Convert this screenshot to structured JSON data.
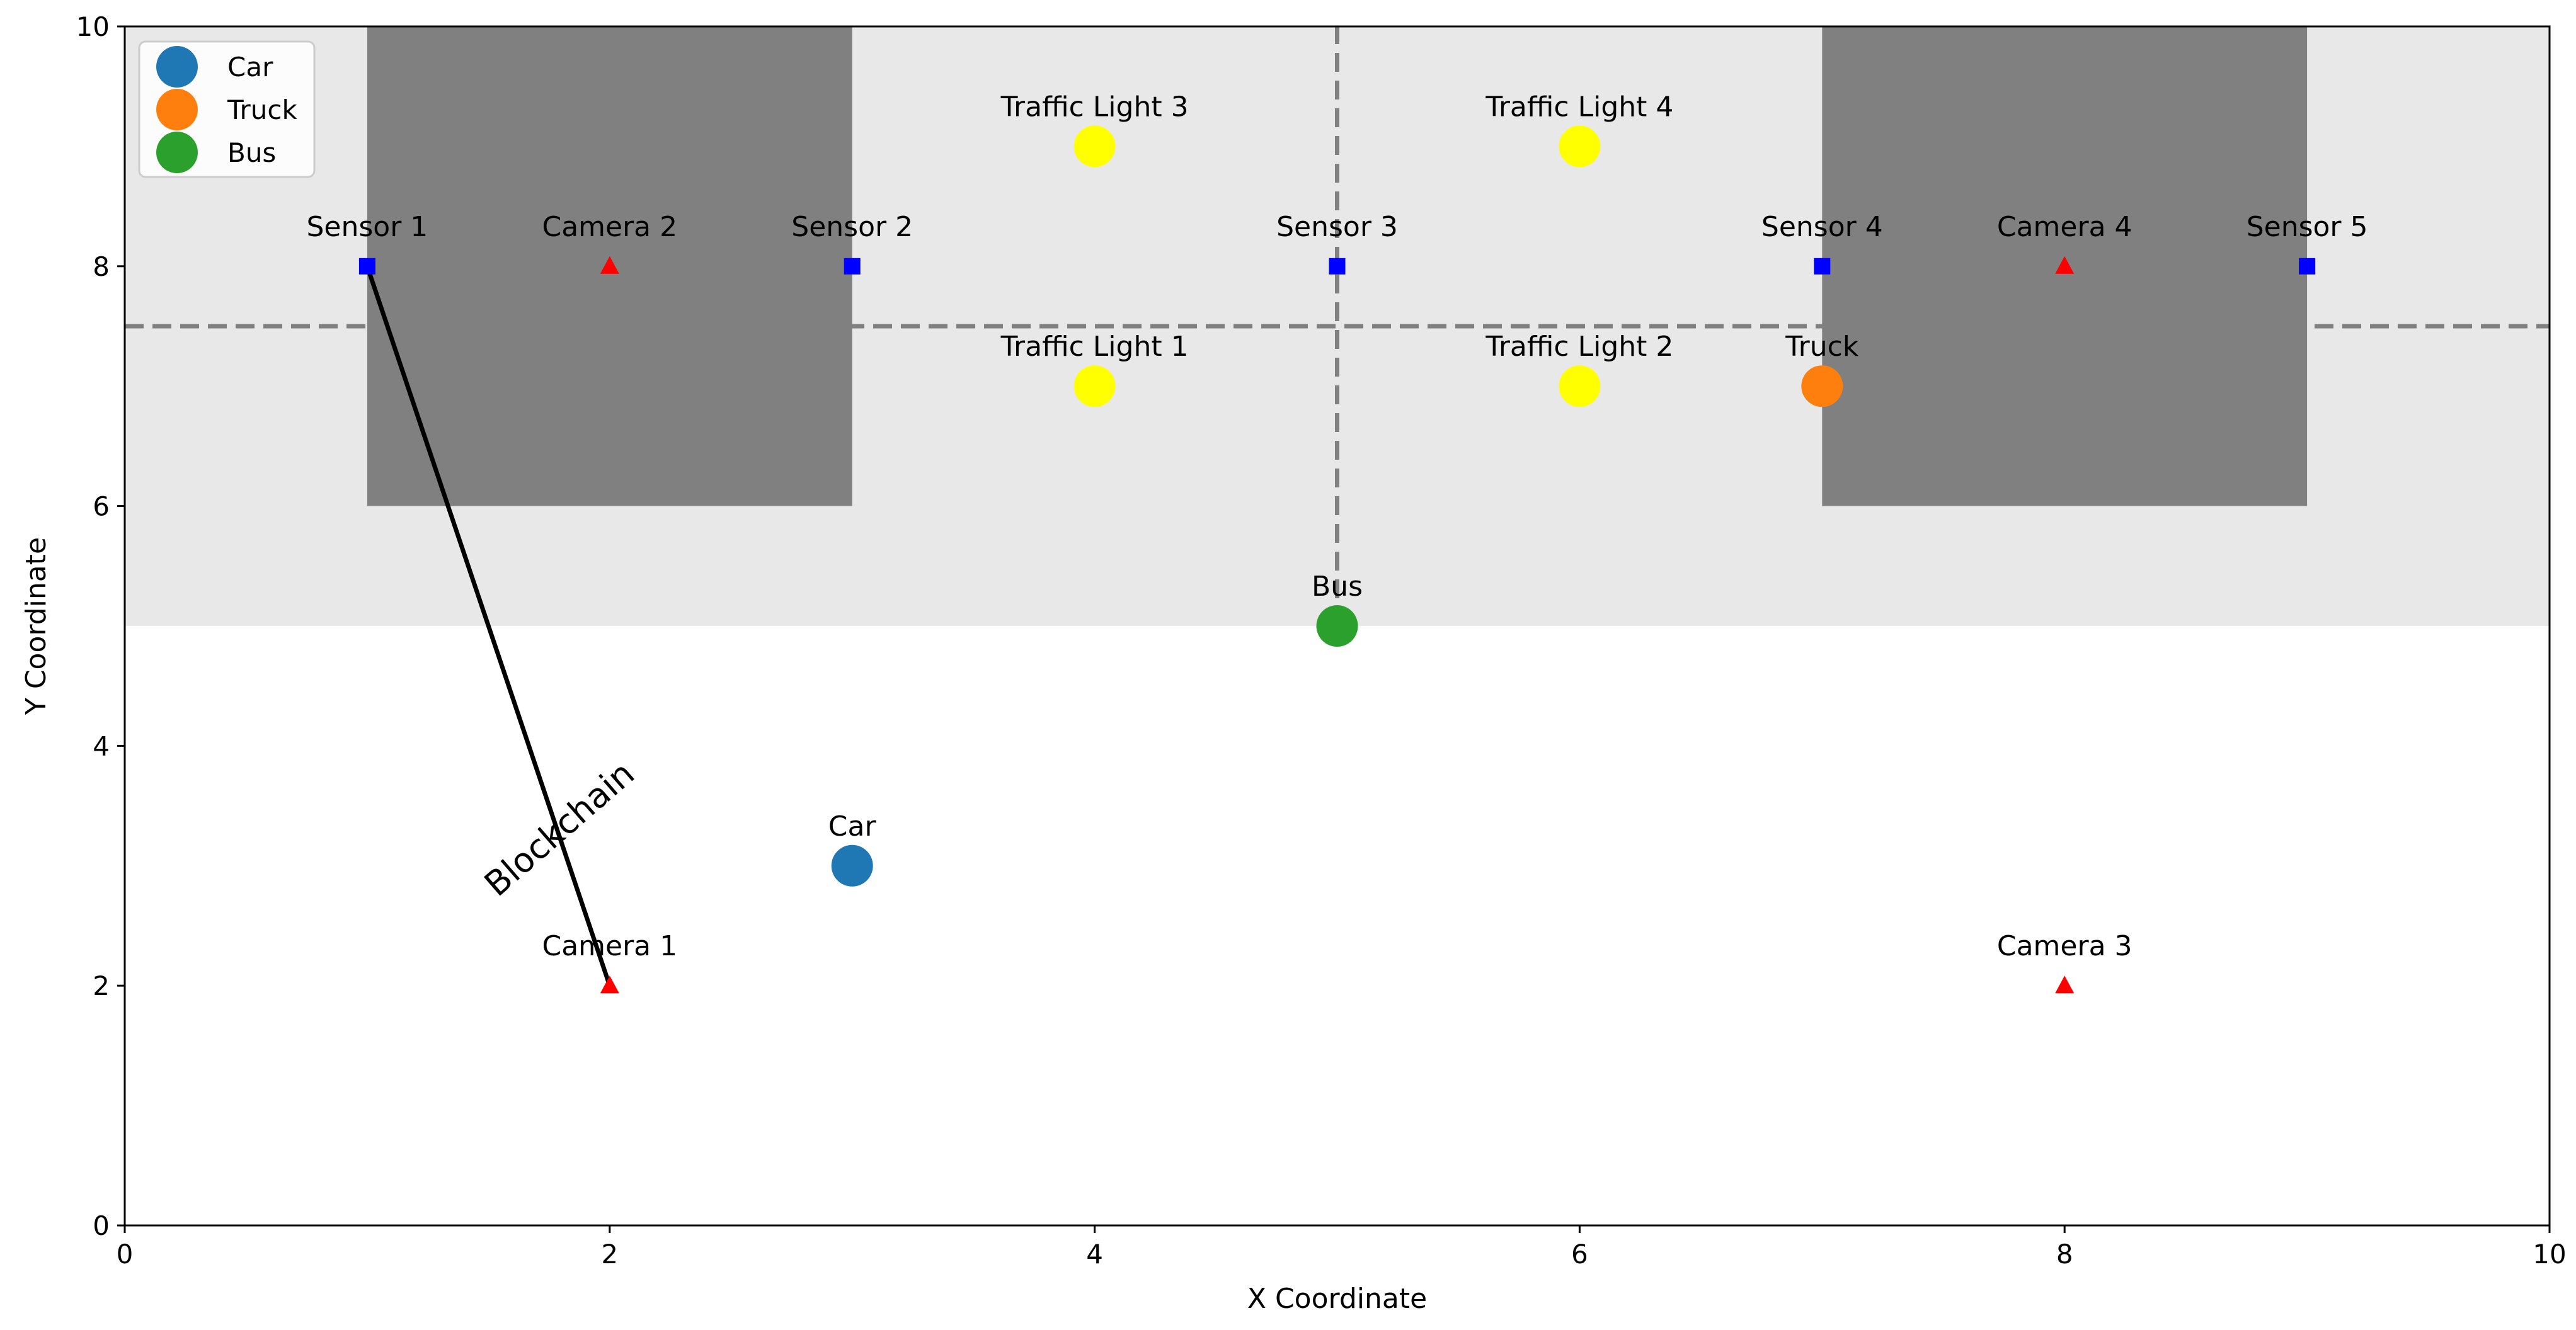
{
  "chart_data": {
    "type": "scatter",
    "title": "",
    "xlabel": "X Coordinate",
    "ylabel": "Y Coordinate",
    "xlim": [
      0,
      10
    ],
    "ylim": [
      0,
      10
    ],
    "xticks": [
      0,
      2,
      4,
      6,
      8,
      10
    ],
    "yticks": [
      0,
      2,
      4,
      6,
      8,
      10
    ],
    "grid": false,
    "regions": [
      {
        "name": "road-zone",
        "x": [
          0,
          10
        ],
        "y": [
          5,
          10
        ],
        "color": "#e8e8e8"
      },
      {
        "name": "building-left",
        "x": [
          1,
          3
        ],
        "y": [
          6,
          10
        ],
        "color": "#808080"
      },
      {
        "name": "building-right",
        "x": [
          7,
          9
        ],
        "y": [
          6,
          10
        ],
        "color": "#808080"
      }
    ],
    "dashed_lines": [
      {
        "name": "horizontal-road-line",
        "x": [
          0,
          10
        ],
        "y": [
          7.5,
          7.5
        ],
        "color": "#808080"
      },
      {
        "name": "vertical-road-line",
        "x": [
          5,
          5
        ],
        "y": [
          5,
          10
        ],
        "color": "#808080"
      }
    ],
    "sensors": [
      {
        "label": "Sensor 1",
        "x": 1,
        "y": 8
      },
      {
        "label": "Sensor 2",
        "x": 3,
        "y": 8
      },
      {
        "label": "Sensor 3",
        "x": 5,
        "y": 8
      },
      {
        "label": "Sensor 4",
        "x": 7,
        "y": 8
      },
      {
        "label": "Sensor 5",
        "x": 9,
        "y": 8
      }
    ],
    "cameras": [
      {
        "label": "Camera 1",
        "x": 2,
        "y": 2
      },
      {
        "label": "Camera 2",
        "x": 2,
        "y": 8
      },
      {
        "label": "Camera 3",
        "x": 8,
        "y": 2
      },
      {
        "label": "Camera 4",
        "x": 8,
        "y": 8
      }
    ],
    "traffic_lights": [
      {
        "label": "Traffic Light 1",
        "x": 4,
        "y": 7
      },
      {
        "label": "Traffic Light 2",
        "x": 6,
        "y": 7
      },
      {
        "label": "Traffic Light 3",
        "x": 4,
        "y": 9
      },
      {
        "label": "Traffic Light 4",
        "x": 6,
        "y": 9
      }
    ],
    "vehicles": [
      {
        "label": "Car",
        "x": 3,
        "y": 3,
        "color": "#1f77b4"
      },
      {
        "label": "Truck",
        "x": 7,
        "y": 7,
        "color": "#ff7f0e"
      },
      {
        "label": "Bus",
        "x": 5,
        "y": 5,
        "color": "#2ca02c"
      }
    ],
    "link": {
      "label": "Blockchain",
      "x": [
        1,
        2
      ],
      "y": [
        8,
        2
      ],
      "color": "#000000"
    },
    "legend": {
      "placement": "top-left",
      "entries": [
        {
          "label": "Car",
          "color": "#1f77b4"
        },
        {
          "label": "Truck",
          "color": "#ff7f0e"
        },
        {
          "label": "Bus",
          "color": "#2ca02c"
        }
      ]
    },
    "colors": {
      "sensor": "#0000ff",
      "camera": "#ff0000",
      "traffic_light": "#ffff00"
    }
  }
}
